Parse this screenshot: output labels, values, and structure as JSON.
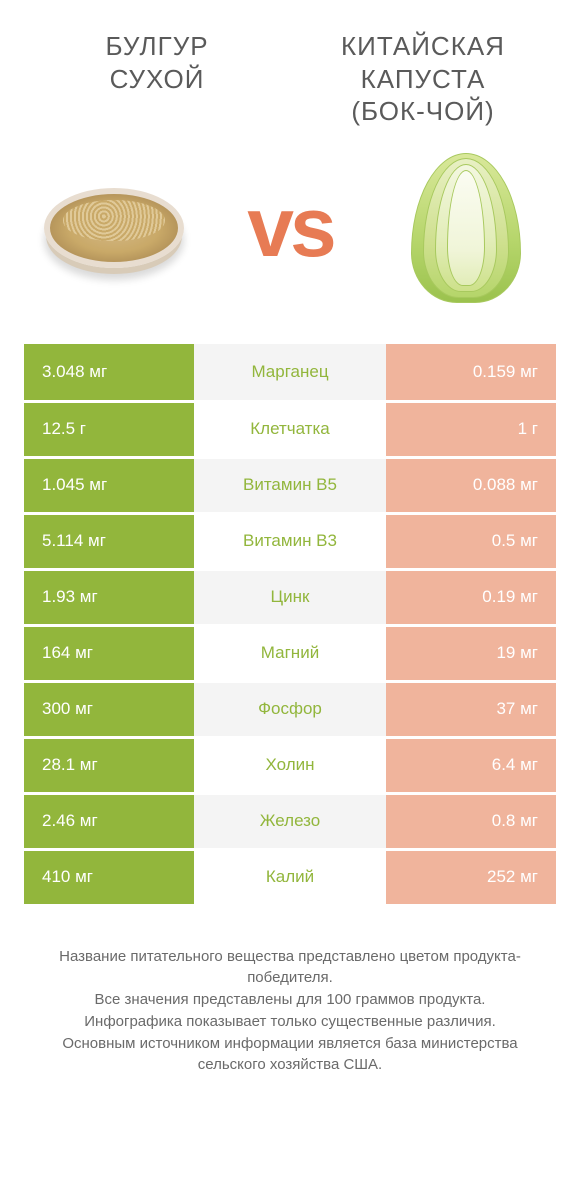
{
  "colors": {
    "left_winner": "#92b63c",
    "left_loser": "#c1d48c",
    "right_winner": "#e77b54",
    "right_loser": "#f0b49c",
    "mid_label_left": "#92b63c",
    "mid_label_right": "#e77b54",
    "mid_bg_even": "#f4f4f4",
    "mid_bg_odd": "#ffffff",
    "text_gray": "#6a6a6a",
    "vs_color": "#e77b54"
  },
  "header": {
    "left_line1": "БУЛГУР",
    "left_line2": "СУХОЙ",
    "right_line1": "КИТАЙСКАЯ",
    "right_line2": "КАПУСТА",
    "right_line3": "(БОК-ЧОЙ)"
  },
  "vs_text": "vs",
  "rows": [
    {
      "label": "Марганец",
      "left": "3.048 мг",
      "right": "0.159 мг",
      "winner": "left"
    },
    {
      "label": "Клетчатка",
      "left": "12.5 г",
      "right": "1 г",
      "winner": "left"
    },
    {
      "label": "Витамин B5",
      "left": "1.045 мг",
      "right": "0.088 мг",
      "winner": "left"
    },
    {
      "label": "Витамин B3",
      "left": "5.114 мг",
      "right": "0.5 мг",
      "winner": "left"
    },
    {
      "label": "Цинк",
      "left": "1.93 мг",
      "right": "0.19 мг",
      "winner": "left"
    },
    {
      "label": "Магний",
      "left": "164 мг",
      "right": "19 мг",
      "winner": "left"
    },
    {
      "label": "Фосфор",
      "left": "300 мг",
      "right": "37 мг",
      "winner": "left"
    },
    {
      "label": "Холин",
      "left": "28.1 мг",
      "right": "6.4 мг",
      "winner": "left"
    },
    {
      "label": "Железо",
      "left": "2.46 мг",
      "right": "0.8 мг",
      "winner": "left"
    },
    {
      "label": "Калий",
      "left": "410 мг",
      "right": "252 мг",
      "winner": "left"
    }
  ],
  "footer": {
    "l1": "Название питательного вещества представлено цветом продукта-победителя.",
    "l2": "Все значения представлены для 100 граммов продукта.",
    "l3": "Инфографика показывает только существенные различия.",
    "l4": "Основным источником информации является база министерства сельского хозяйства США."
  }
}
